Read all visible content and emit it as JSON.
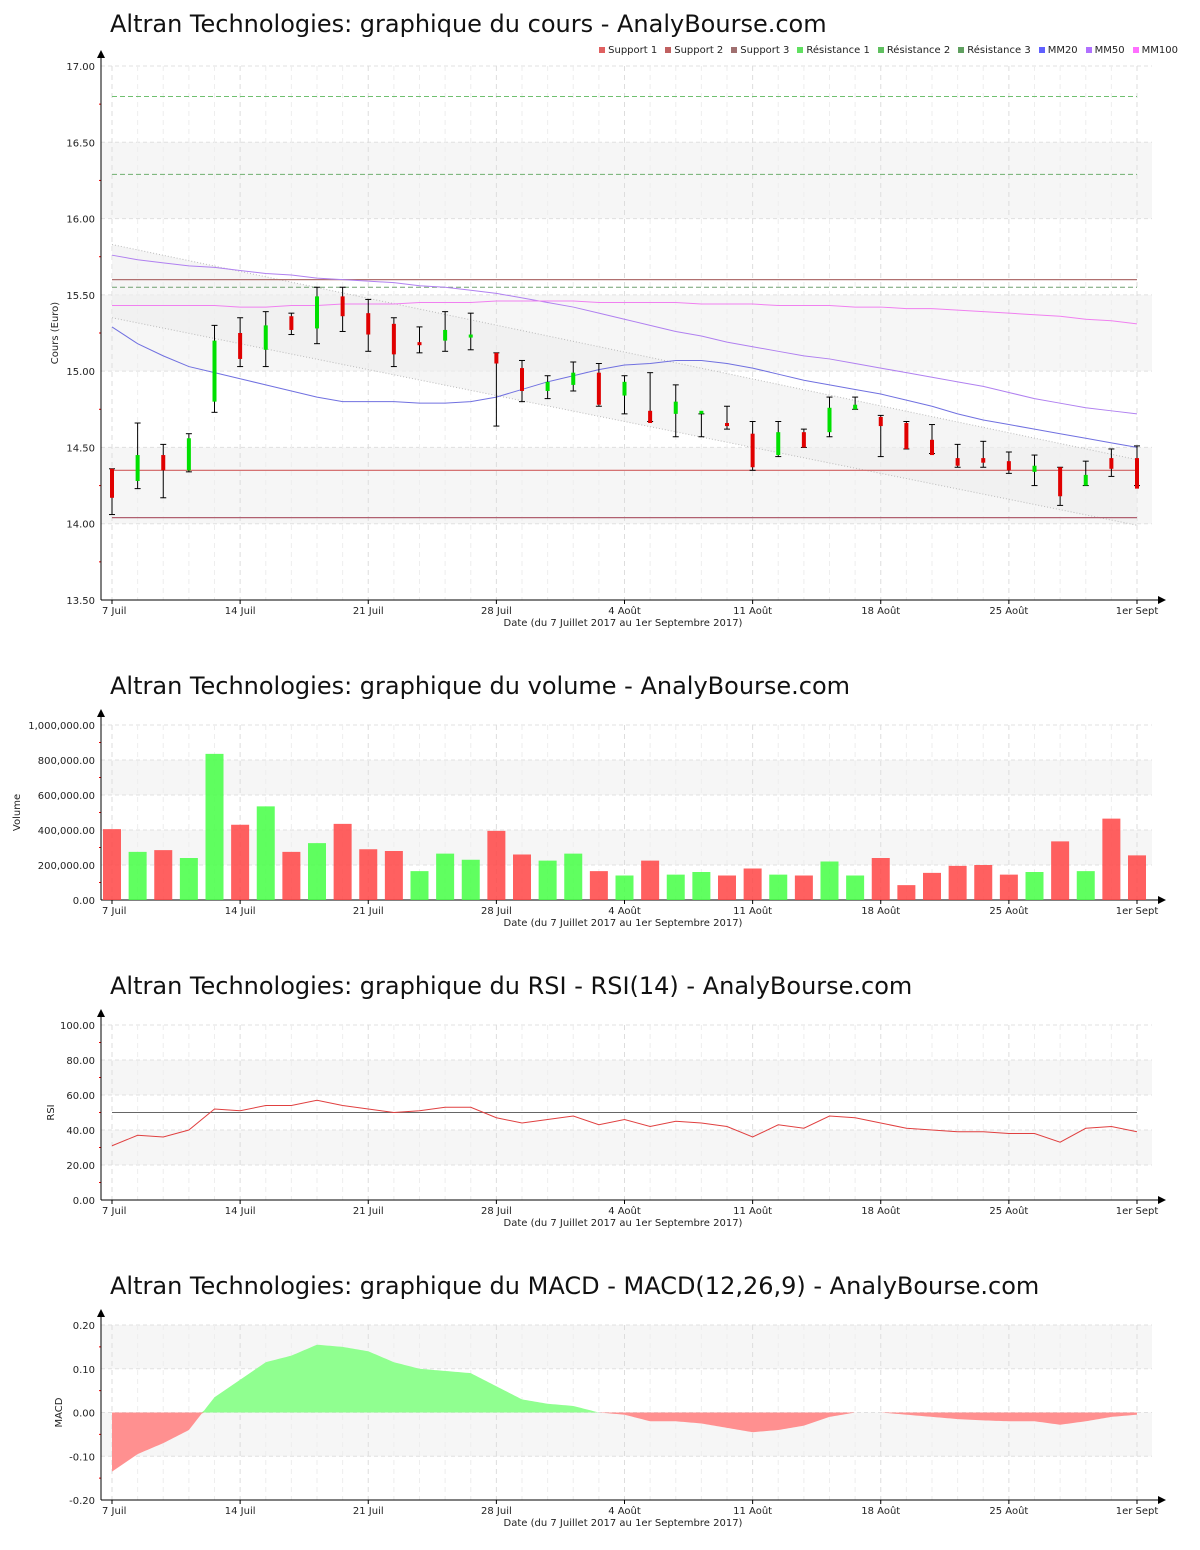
{
  "titles": {
    "price": "Altran Technologies: graphique du cours - AnalyBourse.com",
    "volume": "Altran Technologies: graphique du volume - AnalyBourse.com",
    "rsi": "Altran Technologies: graphique du RSI - RSI(14) - AnalyBourse.com",
    "macd": "Altran Technologies: graphique du MACD - MACD(12,26,9) - AnalyBourse.com"
  },
  "legend": [
    {
      "label": "Support 1",
      "color": "#e06060"
    },
    {
      "label": "Support 2",
      "color": "#c06060"
    },
    {
      "label": "Support 3",
      "color": "#a07070"
    },
    {
      "label": "Résistance 1",
      "color": "#60e060"
    },
    {
      "label": "Résistance 2",
      "color": "#60c060"
    },
    {
      "label": "Résistance 3",
      "color": "#60a060"
    },
    {
      "label": "MM20",
      "color": "#6060ff"
    },
    {
      "label": "MM50",
      "color": "#b070ff"
    },
    {
      "label": "MM100",
      "color": "#ff70ff"
    }
  ],
  "x_axis": {
    "title": "Date (du 7 Juillet 2017 au 1er Septembre 2017)",
    "ticks": [
      "7 Juil",
      "14 Juil",
      "21 Juil",
      "28 Juil",
      "4 Août",
      "11 Août",
      "18 Août",
      "25 Août",
      "1er Sept"
    ],
    "tick_index": [
      0,
      5,
      10,
      15,
      20,
      25,
      30,
      35,
      40
    ]
  },
  "chart_data": [
    {
      "type": "candlestick",
      "title": "Altran Technologies: graphique du cours - AnalyBourse.com",
      "xlabel": "Date (du 7 Juillet 2017 au 1er Septembre 2017)",
      "ylabel": "Cours (Euro)",
      "ylim": [
        13.5,
        17.0
      ],
      "yticks": [
        "13.50",
        "14.00",
        "14.50",
        "15.00",
        "15.50",
        "16.00",
        "16.50",
        "17.00"
      ],
      "grid": true,
      "legend_position": "top-right",
      "dates": [
        "07/07",
        "10/07",
        "11/07",
        "12/07",
        "13/07",
        "14/07",
        "17/07",
        "18/07",
        "19/07",
        "20/07",
        "21/07",
        "24/07",
        "25/07",
        "26/07",
        "27/07",
        "28/07",
        "31/07",
        "01/08",
        "02/08",
        "03/08",
        "04/08",
        "07/08",
        "08/08",
        "09/08",
        "10/08",
        "11/08",
        "14/08",
        "15/08",
        "16/08",
        "17/08",
        "18/08",
        "21/08",
        "22/08",
        "23/08",
        "24/08",
        "25/08",
        "28/08",
        "29/08",
        "30/08",
        "31/08",
        "01/09"
      ],
      "open": [
        14.36,
        14.28,
        14.45,
        14.35,
        14.8,
        15.25,
        15.14,
        15.36,
        15.28,
        15.49,
        15.38,
        15.31,
        15.19,
        15.2,
        15.22,
        15.12,
        15.02,
        14.87,
        14.91,
        14.99,
        14.84,
        14.74,
        14.72,
        14.72,
        14.66,
        14.59,
        14.45,
        14.6,
        14.6,
        14.75,
        14.7,
        14.66,
        14.55,
        14.43,
        14.43,
        14.41,
        14.34,
        14.37,
        14.25,
        14.43,
        14.43
      ],
      "close": [
        14.17,
        14.45,
        14.35,
        14.56,
        15.2,
        15.08,
        15.3,
        15.27,
        15.49,
        15.36,
        15.24,
        15.11,
        15.17,
        15.27,
        15.24,
        15.05,
        14.87,
        14.93,
        14.99,
        14.78,
        14.93,
        14.66,
        14.8,
        14.74,
        14.64,
        14.37,
        14.6,
        14.5,
        14.76,
        14.78,
        14.64,
        14.49,
        14.45,
        14.38,
        14.4,
        14.35,
        14.38,
        14.18,
        14.32,
        14.36,
        14.23
      ],
      "high": [
        14.36,
        14.66,
        14.52,
        14.59,
        15.3,
        15.35,
        15.39,
        15.38,
        15.55,
        15.55,
        15.47,
        15.35,
        15.29,
        15.39,
        15.38,
        15.12,
        15.07,
        14.97,
        15.06,
        15.05,
        14.97,
        14.99,
        14.91,
        14.72,
        14.77,
        14.67,
        14.67,
        14.62,
        14.83,
        14.83,
        14.71,
        14.67,
        14.65,
        14.52,
        14.54,
        14.47,
        14.45,
        14.37,
        14.41,
        14.49,
        14.51
      ],
      "low": [
        14.06,
        14.23,
        14.17,
        14.34,
        14.73,
        15.03,
        15.03,
        15.24,
        15.18,
        15.26,
        15.13,
        15.03,
        15.12,
        15.13,
        15.14,
        14.64,
        14.8,
        14.82,
        14.87,
        14.77,
        14.72,
        14.67,
        14.57,
        14.57,
        14.62,
        14.35,
        14.44,
        14.5,
        14.57,
        14.75,
        14.44,
        14.49,
        14.46,
        14.37,
        14.37,
        14.33,
        14.25,
        14.12,
        14.25,
        14.31,
        14.25
      ],
      "support_lines": [
        {
          "name": "Support 1",
          "value": 14.35,
          "color": "#d06060"
        },
        {
          "name": "Support 2",
          "value": 14.04,
          "color": "#b06070"
        },
        {
          "name": "Support 3",
          "value": 15.6,
          "color": "#b07070"
        }
      ],
      "resistance_lines": [
        {
          "name": "Résistance 1",
          "value": 16.8,
          "color": "#70c070",
          "dash": true
        },
        {
          "name": "Résistance 2",
          "value": 16.29,
          "color": "#70b070",
          "dash": true
        },
        {
          "name": "Résistance 3",
          "value": 15.55,
          "color": "#70a070",
          "dash": true
        }
      ],
      "channel": {
        "upper_start": 15.83,
        "upper_end": 14.42,
        "lower_start": 15.35,
        "lower_end": 13.99
      },
      "series": [
        {
          "name": "MM20",
          "color": "#7070e0",
          "values": [
            15.29,
            15.18,
            15.1,
            15.03,
            14.99,
            14.95,
            14.91,
            14.87,
            14.83,
            14.8,
            14.8,
            14.8,
            14.79,
            14.79,
            14.8,
            14.83,
            14.88,
            14.93,
            14.97,
            15.01,
            15.04,
            15.05,
            15.07,
            15.07,
            15.05,
            15.02,
            14.98,
            14.94,
            14.91,
            14.88,
            14.85,
            14.81,
            14.77,
            14.72,
            14.68,
            14.65,
            14.62,
            14.59,
            14.56,
            14.53,
            14.5
          ]
        },
        {
          "name": "MM50",
          "color": "#b080f0",
          "values": [
            15.76,
            15.73,
            15.71,
            15.69,
            15.68,
            15.66,
            15.64,
            15.63,
            15.61,
            15.6,
            15.59,
            15.58,
            15.56,
            15.55,
            15.53,
            15.51,
            15.48,
            15.45,
            15.42,
            15.38,
            15.34,
            15.3,
            15.26,
            15.23,
            15.19,
            15.16,
            15.13,
            15.1,
            15.08,
            15.05,
            15.02,
            14.99,
            14.96,
            14.93,
            14.9,
            14.86,
            14.82,
            14.79,
            14.76,
            14.74,
            14.72
          ]
        },
        {
          "name": "MM100",
          "color": "#f080f0",
          "values": [
            15.43,
            15.43,
            15.43,
            15.43,
            15.43,
            15.42,
            15.42,
            15.43,
            15.43,
            15.44,
            15.44,
            15.44,
            15.45,
            15.45,
            15.45,
            15.46,
            15.46,
            15.46,
            15.46,
            15.45,
            15.45,
            15.45,
            15.45,
            15.44,
            15.44,
            15.44,
            15.43,
            15.43,
            15.43,
            15.42,
            15.42,
            15.41,
            15.41,
            15.4,
            15.39,
            15.38,
            15.37,
            15.36,
            15.34,
            15.33,
            15.31
          ]
        }
      ]
    },
    {
      "type": "bar",
      "title": "Altran Technologies: graphique du volume - AnalyBourse.com",
      "xlabel": "Date (du 7 Juillet 2017 au 1er Septembre 2017)",
      "ylabel": "Volume",
      "ylim": [
        0,
        1000000
      ],
      "yticks": [
        "0.00",
        "200,000.00",
        "400,000.00",
        "600,000.00",
        "800,000.00",
        "1,000,000.00"
      ],
      "values": [
        405000,
        275000,
        285000,
        240000,
        835000,
        430000,
        535000,
        275000,
        325000,
        435000,
        290000,
        280000,
        165000,
        265000,
        230000,
        395000,
        260000,
        225000,
        265000,
        165000,
        140000,
        225000,
        145000,
        160000,
        140000,
        180000,
        145000,
        140000,
        220000,
        140000,
        240000,
        85000,
        155000,
        195000,
        200000,
        145000,
        160000,
        335000,
        165000,
        465000,
        255000
      ],
      "colors": [
        "red",
        "green",
        "red",
        "green",
        "green",
        "red",
        "green",
        "red",
        "green",
        "red",
        "red",
        "red",
        "green",
        "green",
        "green",
        "red",
        "red",
        "green",
        "green",
        "red",
        "green",
        "red",
        "green",
        "green",
        "red",
        "red",
        "green",
        "red",
        "green",
        "green",
        "red",
        "red",
        "red",
        "red",
        "red",
        "red",
        "green",
        "red",
        "green",
        "red",
        "red"
      ]
    },
    {
      "type": "line",
      "title": "Altran Technologies: graphique du RSI - RSI(14) - AnalyBourse.com",
      "xlabel": "Date (du 7 Juillet 2017 au 1er Septembre 2017)",
      "ylabel": "RSI",
      "ylim": [
        0,
        100
      ],
      "yticks": [
        "0.00",
        "20.00",
        "40.00",
        "60.00",
        "80.00",
        "100.00"
      ],
      "reference_line": 50,
      "series": [
        {
          "name": "RSI(14)",
          "color": "#e04040",
          "values": [
            31,
            37,
            36,
            40,
            52,
            51,
            54,
            54,
            57,
            54,
            52,
            50,
            51,
            53,
            53,
            47,
            44,
            46,
            48,
            43,
            46,
            42,
            45,
            44,
            42,
            36,
            43,
            41,
            48,
            47,
            44,
            41,
            40,
            39,
            39,
            38,
            38,
            33,
            41,
            42,
            39
          ]
        }
      ]
    },
    {
      "type": "area",
      "title": "Altran Technologies: graphique du MACD - MACD(12,26,9) - AnalyBourse.com",
      "xlabel": "Date (du 7 Juillet 2017 au 1er Septembre 2017)",
      "ylabel": "MACD",
      "ylim": [
        -0.2,
        0.2
      ],
      "yticks": [
        "-0.20",
        "-0.10",
        "0.00",
        "0.10",
        "0.20"
      ],
      "series": [
        {
          "name": "MACD(12,26,9)",
          "values": [
            -0.135,
            -0.095,
            -0.07,
            -0.04,
            0.035,
            0.075,
            0.115,
            0.13,
            0.155,
            0.15,
            0.14,
            0.115,
            0.1,
            0.095,
            0.09,
            0.06,
            0.03,
            0.02,
            0.015,
            0.0,
            -0.005,
            -0.02,
            -0.02,
            -0.025,
            -0.035,
            -0.045,
            -0.04,
            -0.03,
            -0.01,
            0.0,
            0.0,
            -0.005,
            -0.01,
            -0.015,
            -0.018,
            -0.02,
            -0.02,
            -0.028,
            -0.02,
            -0.01,
            -0.005
          ]
        }
      ]
    }
  ]
}
